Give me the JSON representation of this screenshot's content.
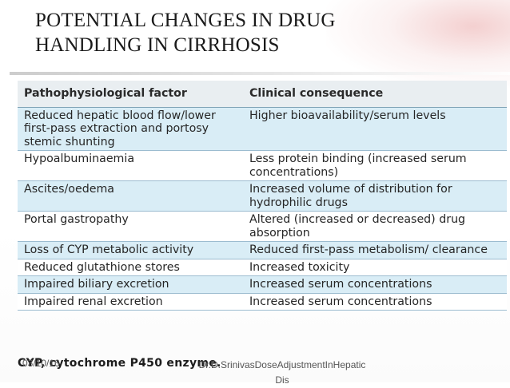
{
  "slide": {
    "title": "POTENTIAL CHANGES IN DRUG HANDLING IN CIRRHOSIS"
  },
  "table": {
    "headers": [
      "Pathophysiological factor",
      "Clinical consequence"
    ],
    "rows": [
      [
        "Reduced hepatic blood flow/lower first-pass extraction and portosy stemic shunting",
        "Higher bioavailability/serum levels"
      ],
      [
        "Hypoalbuminaemia",
        "Less protein binding (increased serum concentrations)"
      ],
      [
        "Ascites/oedema",
        "Increased volume of distribution for hydrophilic drugs"
      ],
      [
        "Portal gastropathy",
        "Altered (increased or decreased) drug absorption"
      ],
      [
        "Loss of CYP metabolic activity",
        "Reduced first-pass metabolism/ clearance"
      ],
      [
        "Reduced glutathione stores",
        "Increased toxicity"
      ],
      [
        "Impaired biliary excretion",
        "Increased serum concentrations"
      ],
      [
        "Impaired renal excretion",
        "Increased serum concentrations"
      ]
    ],
    "footnote": "CYP, cytochrome P450 enzyme."
  },
  "footer": {
    "date": "03/10/16",
    "center_text": "Dr.D.SrinivasDoseAdjustmentInHepaticDis"
  },
  "colors": {
    "band_row": "#d9edf6",
    "header_bg": "#e9eef1",
    "rule": "#9cbcd0"
  }
}
